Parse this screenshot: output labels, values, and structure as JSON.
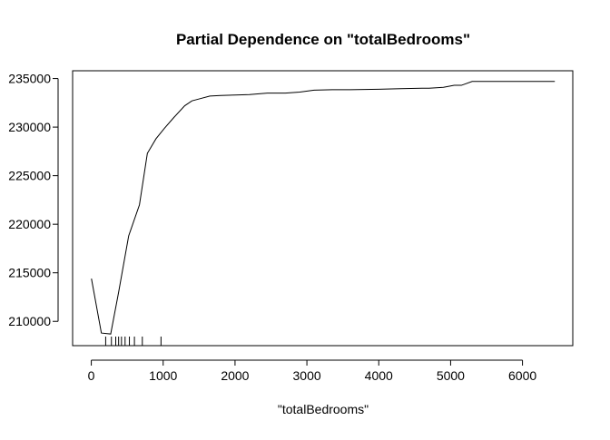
{
  "chart_data": {
    "type": "line",
    "title": "Partial Dependence on \"totalBedrooms\"",
    "xlabel": "\"totalBedrooms\"",
    "ylabel": "",
    "xlim": [
      -260,
      6700
    ],
    "ylim": [
      207500,
      235800
    ],
    "x_ticks": [
      0,
      1000,
      2000,
      3000,
      4000,
      5000,
      6000
    ],
    "x_tick_labels": [
      "0",
      "1000",
      "2000",
      "3000",
      "4000",
      "5000",
      "6000"
    ],
    "y_ticks": [
      210000,
      215000,
      220000,
      225000,
      230000,
      235000
    ],
    "y_tick_labels": [
      "210000",
      "215000",
      "220000",
      "225000",
      "230000",
      "235000"
    ],
    "grid": false,
    "legend": "none",
    "line_color": "#000000",
    "series": [
      {
        "x": [
          2,
          140,
          270,
          380,
          520,
          670,
          780,
          900,
          1020,
          1150,
          1300,
          1400,
          1500,
          1650,
          1800,
          2000,
          2200,
          2450,
          2700,
          2900,
          3100,
          3350,
          3600,
          4000,
          4300,
          4600,
          4700,
          4900,
          5050,
          5150,
          5300,
          5500,
          6000,
          6450
        ],
        "y": [
          214400,
          208800,
          208700,
          213000,
          218800,
          222000,
          227300,
          228800,
          229900,
          231000,
          232200,
          232700,
          232900,
          233200,
          233250,
          233300,
          233350,
          233500,
          233500,
          233600,
          233800,
          233850,
          233850,
          233900,
          233950,
          234000,
          234000,
          234100,
          234300,
          234300,
          234700,
          234700,
          234700,
          234700
        ]
      }
    ],
    "rug": [
      200,
      280,
      340,
      380,
      420,
      470,
      530,
      600,
      710,
      970
    ]
  }
}
